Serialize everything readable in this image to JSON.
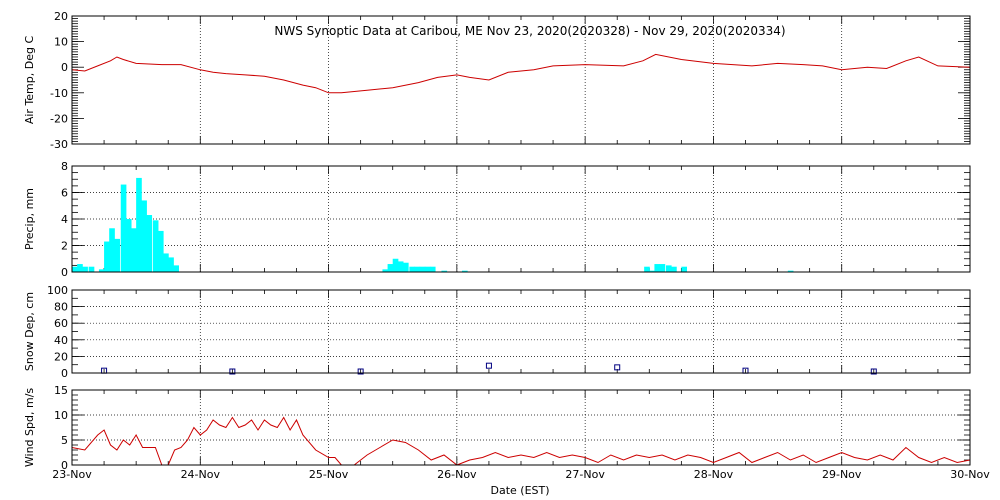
{
  "chart_data": {
    "type": "line",
    "title": "NWS Synoptic Data at Caribou, ME    Nov 23, 2020(2020328) - Nov 29, 2020(2020334)",
    "xlabel": "Date (EST)",
    "x_tick_labels": [
      "23-Nov",
      "24-Nov",
      "25-Nov",
      "26-Nov",
      "27-Nov",
      "28-Nov",
      "29-Nov",
      "30-Nov"
    ],
    "xlim_days": [
      0,
      7
    ],
    "colors": {
      "air_temp": "#cc0000",
      "precip": "#00ffff",
      "snow_depth": "#000080",
      "wind": "#cc0000"
    },
    "panels": [
      {
        "id": "air_temp",
        "type": "line",
        "ylabel": "Air Temp, Deg C",
        "ylim": [
          -30,
          20
        ],
        "yticks": [
          -30,
          -20,
          -10,
          0,
          10,
          20
        ],
        "x_days": [
          0,
          0.1,
          0.2,
          0.3,
          0.35,
          0.4,
          0.5,
          0.7,
          0.85,
          1.0,
          1.1,
          1.2,
          1.35,
          1.5,
          1.65,
          1.8,
          1.9,
          2.0,
          2.1,
          2.3,
          2.5,
          2.7,
          2.85,
          3.0,
          3.1,
          3.25,
          3.4,
          3.6,
          3.75,
          4.0,
          4.3,
          4.45,
          4.55,
          4.75,
          5.0,
          5.3,
          5.5,
          5.7,
          5.85,
          6.0,
          6.2,
          6.35,
          6.5,
          6.6,
          6.75,
          7.0
        ],
        "values": [
          -1,
          -1.5,
          0.5,
          2.5,
          4,
          3,
          1.5,
          1,
          1,
          -1,
          -2,
          -2.5,
          -3,
          -3.5,
          -5,
          -7,
          -8,
          -10,
          -10,
          -9,
          -8,
          -6,
          -4,
          -3,
          -4,
          -5,
          -2,
          -1,
          0.5,
          1,
          0.5,
          2.5,
          5,
          3,
          1.5,
          0.5,
          1.5,
          1,
          0.5,
          -1,
          0,
          -0.5,
          2.5,
          4,
          0.5,
          0
        ]
      },
      {
        "id": "precip",
        "type": "bar",
        "ylabel": "Precip, mm",
        "ylim": [
          0,
          8
        ],
        "yticks": [
          0,
          2,
          4,
          6,
          8
        ],
        "bar_width_days": 0.04167,
        "x_days": [
          0.0,
          0.04,
          0.08,
          0.13,
          0.17,
          0.21,
          0.25,
          0.29,
          0.33,
          0.38,
          0.42,
          0.46,
          0.5,
          0.54,
          0.58,
          0.63,
          0.67,
          0.71,
          0.75,
          0.79,
          2.42,
          2.46,
          2.5,
          2.54,
          2.58,
          2.63,
          2.67,
          2.71,
          2.75,
          2.79,
          2.88,
          3.04,
          4.46,
          4.5,
          4.54,
          4.58,
          4.63,
          4.67,
          4.75,
          5.58
        ],
        "values": [
          0.4,
          0.6,
          0.4,
          0.4,
          0.0,
          0.2,
          2.3,
          3.3,
          2.5,
          6.6,
          4.0,
          3.3,
          7.1,
          5.4,
          4.3,
          3.9,
          3.1,
          1.4,
          1.1,
          0.5,
          0.2,
          0.6,
          1.0,
          0.8,
          0.7,
          0.4,
          0.4,
          0.4,
          0.4,
          0.4,
          0.1,
          0.1,
          0.4,
          0.1,
          0.6,
          0.6,
          0.5,
          0.4,
          0.4,
          0.1
        ]
      },
      {
        "id": "snow_depth",
        "type": "scatter",
        "ylabel": "Snow Dep, cm",
        "ylim": [
          0,
          100
        ],
        "yticks": [
          0,
          20,
          40,
          60,
          80,
          100
        ],
        "x_days": [
          0.25,
          1.25,
          2.25,
          3.25,
          4.25,
          5.25,
          6.25
        ],
        "values": [
          1,
          0,
          0,
          7,
          5,
          1,
          0
        ]
      },
      {
        "id": "wind",
        "type": "line",
        "ylabel": "Wind Spd, m/s",
        "ylim": [
          0,
          15
        ],
        "yticks": [
          0,
          5,
          10,
          15
        ],
        "x_days": [
          0,
          0.1,
          0.2,
          0.25,
          0.3,
          0.35,
          0.4,
          0.45,
          0.5,
          0.55,
          0.6,
          0.65,
          0.7,
          0.75,
          0.8,
          0.85,
          0.9,
          0.95,
          1.0,
          1.05,
          1.1,
          1.15,
          1.2,
          1.25,
          1.3,
          1.35,
          1.4,
          1.45,
          1.5,
          1.55,
          1.6,
          1.65,
          1.7,
          1.75,
          1.8,
          1.9,
          2.0,
          2.05,
          2.1,
          2.2,
          2.3,
          2.4,
          2.5,
          2.6,
          2.7,
          2.8,
          2.9,
          3.0,
          3.1,
          3.2,
          3.3,
          3.4,
          3.5,
          3.6,
          3.7,
          3.8,
          3.9,
          4.0,
          4.1,
          4.2,
          4.3,
          4.4,
          4.5,
          4.6,
          4.7,
          4.8,
          4.9,
          5.0,
          5.1,
          5.2,
          5.3,
          5.4,
          5.5,
          5.6,
          5.7,
          5.8,
          5.9,
          6.0,
          6.1,
          6.2,
          6.3,
          6.4,
          6.5,
          6.6,
          6.7,
          6.8,
          6.9,
          7.0
        ],
        "values": [
          3.5,
          3,
          6,
          7,
          4,
          3,
          5,
          4,
          6,
          3.5,
          3.5,
          3.5,
          0,
          0,
          3,
          3.5,
          5,
          7.5,
          6,
          7,
          9,
          8,
          7.5,
          9.5,
          7.5,
          8,
          9,
          7,
          9,
          8,
          7.5,
          9.5,
          7,
          9,
          6,
          3,
          1.5,
          1.5,
          0,
          0,
          2,
          3.5,
          5,
          4.5,
          3,
          1,
          2,
          0,
          1,
          1.5,
          2.5,
          1.5,
          2,
          1.5,
          2.5,
          1.5,
          2,
          1.5,
          0.5,
          2,
          1,
          2,
          1.5,
          2,
          1,
          2,
          1.5,
          0.5,
          1.5,
          2.5,
          0.5,
          1.5,
          2.5,
          1,
          2,
          0.5,
          1.5,
          2.5,
          1.5,
          1,
          2,
          1,
          3.5,
          1.5,
          0.5,
          1.5,
          0.5,
          1
        ]
      }
    ]
  }
}
